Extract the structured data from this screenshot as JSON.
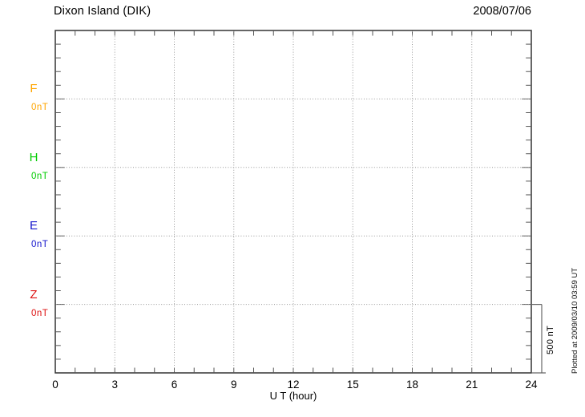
{
  "header": {
    "title": "Dixon Island (DIK)",
    "date": "2008/07/06"
  },
  "plot": {
    "xlabel": "U T (hour)",
    "x_tick_labels": [
      "0",
      "3",
      "6",
      "9",
      "12",
      "15",
      "18",
      "21",
      "24"
    ],
    "channels": [
      {
        "label": "F",
        "baseline_label": "0nT",
        "color": "#FFA500"
      },
      {
        "label": "H",
        "baseline_label": "0nT",
        "color": "#00CC00"
      },
      {
        "label": "E",
        "baseline_label": "0nT",
        "color": "#1414CC"
      },
      {
        "label": "Z",
        "baseline_label": "0nT",
        "color": "#DD1111"
      }
    ],
    "scale_bar_label": "500 nT"
  },
  "footer": {
    "plotted_at": "Plotted at 2009/03/10 03:59 UT"
  },
  "colors": {
    "frame": "#333333",
    "ticks": "#555555",
    "grid": "#999999",
    "scalebar": "#666666",
    "text": "#000000"
  },
  "chart_data": {
    "type": "line",
    "title": "Dixon Island (DIK)",
    "date": "2008/07/06",
    "xlabel": "U T (hour)",
    "x_range_hours": [
      0,
      24
    ],
    "x_ticks": [
      0,
      3,
      6,
      9,
      12,
      15,
      18,
      21,
      24
    ],
    "x_minor_tick_hours": 1,
    "y_scale_bar_nT": 500,
    "y_minor_tick_nT": 100,
    "series": [
      {
        "name": "F",
        "baseline_nT": 0,
        "color": "#FFA500",
        "values": []
      },
      {
        "name": "H",
        "baseline_nT": 0,
        "color": "#00CC00",
        "values": []
      },
      {
        "name": "E",
        "baseline_nT": 0,
        "color": "#1414CC",
        "values": []
      },
      {
        "name": "Z",
        "baseline_nT": 0,
        "color": "#DD1111",
        "values": []
      }
    ],
    "grid": "dotted vertical lines every 3 hours; dotted horizontal line at each channel 0nT baseline",
    "legend_position": "left margin channel labels",
    "note": "Empty magnetogram plot - no trace data drawn for this day"
  }
}
